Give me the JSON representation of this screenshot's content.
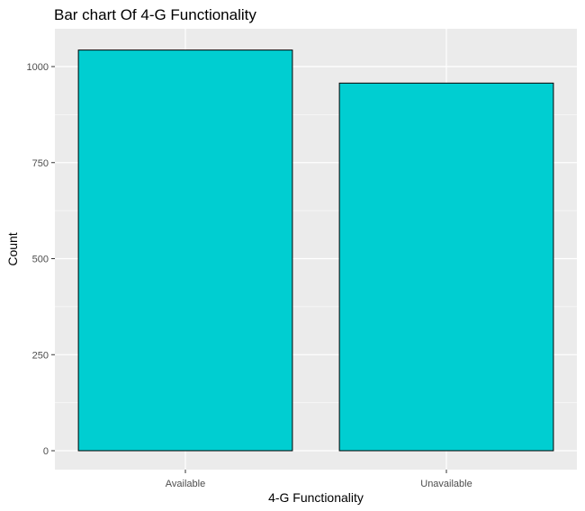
{
  "chart_data": {
    "type": "bar",
    "title": "Bar chart Of 4-G Functionality",
    "xlabel": "4-G Functionality",
    "ylabel": "Count",
    "categories": [
      "Available",
      "Unavailable"
    ],
    "values": [
      1043,
      957
    ],
    "ylim": [
      0,
      1070
    ],
    "yticks": [
      0,
      250,
      500,
      750,
      1000
    ],
    "grid": true,
    "legend": "none",
    "colors": {
      "bar_fill": "#00CED1",
      "bar_stroke": "#000000",
      "panel_background": "#EBEBEB",
      "grid_line": "#FFFFFF",
      "tick_text": "#4D4D4D",
      "tick_mark": "#333333"
    }
  }
}
